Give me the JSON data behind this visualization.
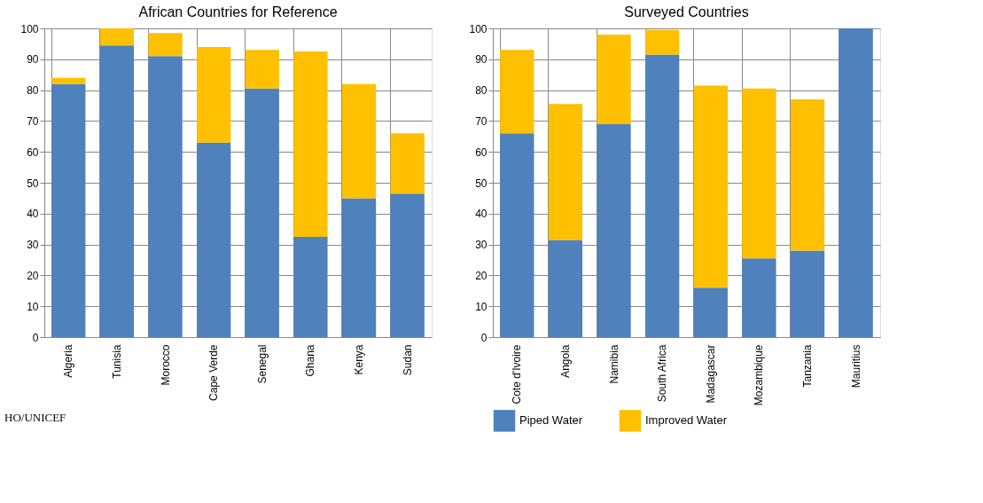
{
  "chart_data": [
    {
      "type": "bar",
      "title": "African Countries for Reference",
      "categories": [
        "Algeria",
        "Tunisia",
        "Morocco",
        "Cape Verde",
        "Senegal",
        "Ghana",
        "Kenya",
        "Sudan"
      ],
      "series": [
        {
          "color": "#4f81bd",
          "values": [
            82,
            94.5,
            91,
            63,
            80.5,
            32.5,
            45,
            46.5
          ]
        },
        {
          "color": "#ffc000",
          "values": [
            2,
            5.5,
            7.5,
            31,
            12.5,
            60,
            37,
            19.5
          ]
        }
      ],
      "stacked": true,
      "ylim": [
        0,
        100
      ],
      "yticks": [
        0,
        10,
        20,
        30,
        40,
        50,
        60,
        70,
        80,
        90,
        100
      ],
      "grid": true,
      "annotations": [
        "HO/UNICEF"
      ]
    },
    {
      "type": "bar",
      "title": "Surveyed Countries",
      "categories": [
        "Cote d'Ivoire",
        "Angola",
        "Namibia",
        "South Africa",
        "Madagascar",
        "Mozambique",
        "Tanzania",
        "Mauritius"
      ],
      "series": [
        {
          "name": "Piped Water",
          "color": "#4f81bd",
          "values": [
            66,
            31.5,
            69,
            91.5,
            16,
            25.5,
            28,
            100
          ]
        },
        {
          "name": "Improved Water",
          "color": "#ffc000",
          "values": [
            27,
            44,
            29,
            8,
            65.5,
            55,
            49,
            0
          ]
        }
      ],
      "stacked": true,
      "ylim": [
        0,
        100
      ],
      "yticks": [
        0,
        10,
        20,
        30,
        40,
        50,
        60,
        70,
        80,
        90,
        100
      ],
      "grid": true,
      "legend": "bottom"
    }
  ]
}
